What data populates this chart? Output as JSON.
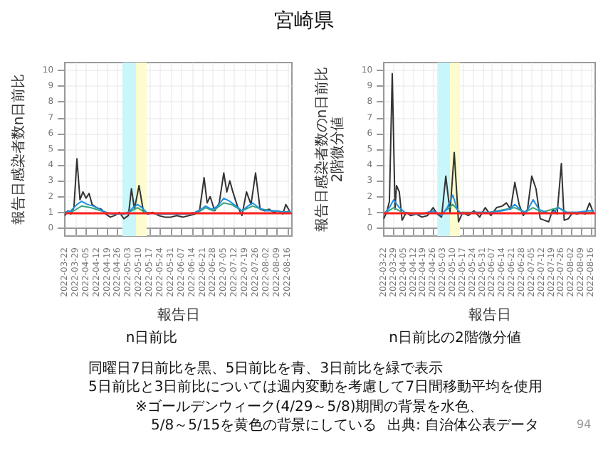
{
  "chart_data": [
    {
      "type": "line",
      "title": "n日前比",
      "xlabel": "報告日",
      "ylabel": "報告日感染者数n日前比",
      "xlim": [
        "2022-03-22",
        "2022-08-19"
      ],
      "xticks": [
        "2022-03-22",
        "2022-03-29",
        "2022-04-05",
        "2022-04-12",
        "2022-04-19",
        "2022-04-26",
        "2022-05-03",
        "2022-05-10",
        "2022-05-17",
        "2022-05-24",
        "2022-05-31",
        "2022-06-07",
        "2022-06-14",
        "2022-06-21",
        "2022-06-28",
        "2022-07-05",
        "2022-07-12",
        "2022-07-19",
        "2022-07-26",
        "2022-08-02",
        "2022-08-09",
        "2022-08-16"
      ],
      "ylim": [
        -0.5,
        10.5
      ],
      "yticks": [
        0,
        1,
        2,
        3,
        4,
        5,
        6,
        7,
        8,
        9,
        10
      ],
      "grid": true,
      "marker": "none",
      "line_style": "solid",
      "annotations": [
        "宮崎県",
        "同曜日7日前比を黒、5日前比を青、3日前比を緑で表示",
        "5日前比と3日前比については週内変動を考慮して7日間移動平均を使用",
        "※ゴールデンウィーク(4/29～5/8)期間の背景を水色、",
        "5/8～5/15を黄色の背景にしている",
        "出典: 自治体公表データ",
        "94"
      ],
      "bands": [
        {
          "axis": "x",
          "from": "2022-04-29",
          "to": "2022-05-08",
          "color": "#c9f6fb"
        },
        {
          "axis": "x",
          "from": "2022-05-08",
          "to": "2022-05-15",
          "color": "#fdfccf"
        }
      ],
      "ref_lines": [
        {
          "axis": "y",
          "value": 1,
          "color": "#ff2020"
        }
      ],
      "series": [
        {
          "color": "#333333",
          "x": [
            "2022-03-22",
            "2022-03-24",
            "2022-03-26",
            "2022-03-28",
            "2022-03-30",
            "2022-04-01",
            "2022-04-03",
            "2022-04-05",
            "2022-04-07",
            "2022-04-09",
            "2022-04-12",
            "2022-04-15",
            "2022-04-18",
            "2022-04-21",
            "2022-04-24",
            "2022-04-27",
            "2022-04-30",
            "2022-05-03",
            "2022-05-05",
            "2022-05-07",
            "2022-05-10",
            "2022-05-13",
            "2022-05-16",
            "2022-05-19",
            "2022-05-23",
            "2022-05-27",
            "2022-05-31",
            "2022-06-04",
            "2022-06-08",
            "2022-06-12",
            "2022-06-16",
            "2022-06-19",
            "2022-06-22",
            "2022-06-24",
            "2022-06-26",
            "2022-06-29",
            "2022-07-02",
            "2022-07-05",
            "2022-07-07",
            "2022-07-09",
            "2022-07-11",
            "2022-07-14",
            "2022-07-17",
            "2022-07-20",
            "2022-07-23",
            "2022-07-26",
            "2022-07-29",
            "2022-08-01",
            "2022-08-04",
            "2022-08-07",
            "2022-08-10",
            "2022-08-13",
            "2022-08-15",
            "2022-08-18"
          ],
          "values": [
            0.8,
            1.1,
            0.9,
            1.3,
            4.4,
            1.8,
            2.3,
            1.9,
            2.2,
            1.5,
            1.3,
            1.2,
            0.9,
            0.7,
            0.8,
            1.0,
            0.6,
            0.8,
            2.5,
            1.2,
            2.7,
            1.0,
            0.9,
            1.0,
            0.8,
            0.7,
            0.7,
            0.8,
            0.7,
            0.8,
            0.9,
            1.1,
            3.2,
            1.6,
            2.0,
            1.1,
            1.6,
            3.5,
            2.3,
            3.0,
            2.3,
            1.4,
            0.8,
            2.3,
            1.5,
            3.5,
            1.2,
            1.1,
            1.2,
            1.0,
            1.1,
            0.9,
            1.5,
            1.0
          ]
        },
        {
          "color": "#3aa57a",
          "x": [
            "2022-03-22",
            "2022-03-28",
            "2022-04-02",
            "2022-04-08",
            "2022-04-15",
            "2022-04-22",
            "2022-04-30",
            "2022-05-05",
            "2022-05-09",
            "2022-05-14",
            "2022-05-25",
            "2022-06-10",
            "2022-06-18",
            "2022-06-23",
            "2022-06-28",
            "2022-07-05",
            "2022-07-10",
            "2022-07-17",
            "2022-07-24",
            "2022-07-30",
            "2022-08-06",
            "2022-08-18"
          ],
          "values": [
            1.0,
            1.1,
            1.4,
            1.3,
            1.1,
            0.9,
            0.9,
            1.1,
            1.3,
            1.0,
            0.9,
            0.9,
            1.0,
            1.3,
            1.1,
            1.6,
            1.5,
            1.1,
            1.4,
            1.2,
            1.1,
            1.0
          ]
        },
        {
          "color": "#1f8fe0",
          "x": [
            "2022-03-22",
            "2022-03-26",
            "2022-03-30",
            "2022-04-02",
            "2022-04-06",
            "2022-04-10",
            "2022-04-14",
            "2022-04-18",
            "2022-04-22",
            "2022-04-26",
            "2022-04-30",
            "2022-05-03",
            "2022-05-06",
            "2022-05-09",
            "2022-05-12",
            "2022-05-15",
            "2022-05-22",
            "2022-06-01",
            "2022-06-10",
            "2022-06-16",
            "2022-06-20",
            "2022-06-23",
            "2022-06-27",
            "2022-07-01",
            "2022-07-05",
            "2022-07-09",
            "2022-07-13",
            "2022-07-17",
            "2022-07-21",
            "2022-07-24",
            "2022-07-28",
            "2022-08-02",
            "2022-08-08",
            "2022-08-14",
            "2022-08-18"
          ],
          "values": [
            1.0,
            1.1,
            1.5,
            1.7,
            1.5,
            1.4,
            1.2,
            1.0,
            0.9,
            0.9,
            0.9,
            1.0,
            1.3,
            1.5,
            1.3,
            1.0,
            0.9,
            0.9,
            0.9,
            1.0,
            1.2,
            1.4,
            1.2,
            1.4,
            1.9,
            1.7,
            1.4,
            1.1,
            1.4,
            1.6,
            1.3,
            1.1,
            1.1,
            1.0,
            1.1
          ]
        }
      ]
    },
    {
      "type": "line",
      "title": "n日前比の2階微分値",
      "xlabel": "報告日",
      "ylabel": "報告日感染者数のn日前比\n2階微分値",
      "xlim": [
        "2022-03-22",
        "2022-08-19"
      ],
      "xticks": [
        "2022-03-22",
        "2022-03-29",
        "2022-04-05",
        "2022-04-12",
        "2022-04-19",
        "2022-04-26",
        "2022-05-03",
        "2022-05-10",
        "2022-05-17",
        "2022-05-24",
        "2022-05-31",
        "2022-06-07",
        "2022-06-14",
        "2022-06-21",
        "2022-06-28",
        "2022-07-05",
        "2022-07-12",
        "2022-07-19",
        "2022-07-26",
        "2022-08-02",
        "2022-08-09",
        "2022-08-16"
      ],
      "ylim": [
        -0.5,
        10.5
      ],
      "yticks": [
        0,
        1,
        2,
        3,
        4,
        5,
        6,
        7,
        8,
        9,
        10
      ],
      "grid": true,
      "marker": "none",
      "line_style": "solid",
      "bands": [
        {
          "axis": "x",
          "from": "2022-04-29",
          "to": "2022-05-08",
          "color": "#c9f6fb"
        },
        {
          "axis": "x",
          "from": "2022-05-08",
          "to": "2022-05-15",
          "color": "#fdfccf"
        }
      ],
      "ref_lines": [
        {
          "axis": "y",
          "value": 1,
          "color": "#ff2020"
        }
      ],
      "series": [
        {
          "color": "#333333",
          "x": [
            "2022-03-22",
            "2022-03-24",
            "2022-03-26",
            "2022-03-28",
            "2022-03-30",
            "2022-03-31",
            "2022-04-02",
            "2022-04-04",
            "2022-04-07",
            "2022-04-10",
            "2022-04-14",
            "2022-04-18",
            "2022-04-22",
            "2022-04-26",
            "2022-04-29",
            "2022-05-02",
            "2022-05-05",
            "2022-05-08",
            "2022-05-11",
            "2022-05-14",
            "2022-05-17",
            "2022-05-21",
            "2022-05-25",
            "2022-05-29",
            "2022-06-02",
            "2022-06-06",
            "2022-06-10",
            "2022-06-14",
            "2022-06-17",
            "2022-06-20",
            "2022-06-23",
            "2022-06-26",
            "2022-06-29",
            "2022-07-02",
            "2022-07-05",
            "2022-07-08",
            "2022-07-11",
            "2022-07-14",
            "2022-07-17",
            "2022-07-20",
            "2022-07-23",
            "2022-07-26",
            "2022-07-28",
            "2022-07-31",
            "2022-08-03",
            "2022-08-06",
            "2022-08-09",
            "2022-08-12",
            "2022-08-15",
            "2022-08-18"
          ],
          "values": [
            0.6,
            1.0,
            1.7,
            9.8,
            1.2,
            2.7,
            2.3,
            0.5,
            1.0,
            0.8,
            0.9,
            0.7,
            0.8,
            1.3,
            0.9,
            0.7,
            3.3,
            1.0,
            4.8,
            0.4,
            1.0,
            0.8,
            1.1,
            0.7,
            1.3,
            0.8,
            1.3,
            1.4,
            1.6,
            1.2,
            2.9,
            1.5,
            0.8,
            1.2,
            3.3,
            2.5,
            0.6,
            0.5,
            0.4,
            1.2,
            0.9,
            4.1,
            0.5,
            0.6,
            1.0,
            0.9,
            1.0,
            0.9,
            1.6,
            0.9
          ]
        },
        {
          "color": "#3aa57a",
          "x": [
            "2022-03-22",
            "2022-03-29",
            "2022-04-04",
            "2022-04-18",
            "2022-04-26",
            "2022-05-02",
            "2022-05-10",
            "2022-05-15",
            "2022-06-05",
            "2022-06-23",
            "2022-06-30",
            "2022-07-06",
            "2022-07-12",
            "2022-07-24",
            "2022-07-30",
            "2022-08-18"
          ],
          "values": [
            0.9,
            1.3,
            1.0,
            0.9,
            1.0,
            0.9,
            1.5,
            1.0,
            1.0,
            1.3,
            1.0,
            1.3,
            1.0,
            1.3,
            1.0,
            1.0
          ]
        },
        {
          "color": "#1f8fe0",
          "x": [
            "2022-03-22",
            "2022-03-26",
            "2022-03-29",
            "2022-04-02",
            "2022-04-06",
            "2022-04-12",
            "2022-04-18",
            "2022-04-26",
            "2022-05-02",
            "2022-05-06",
            "2022-05-10",
            "2022-05-13",
            "2022-05-16",
            "2022-05-25",
            "2022-06-05",
            "2022-06-14",
            "2022-06-19",
            "2022-06-23",
            "2022-06-28",
            "2022-07-01",
            "2022-07-06",
            "2022-07-10",
            "2022-07-15",
            "2022-07-19",
            "2022-07-24",
            "2022-07-29",
            "2022-08-06",
            "2022-08-14",
            "2022-08-18"
          ],
          "values": [
            0.9,
            1.3,
            1.8,
            1.3,
            1.0,
            0.9,
            0.9,
            1.1,
            0.8,
            1.3,
            2.1,
            1.2,
            0.9,
            1.0,
            1.0,
            1.1,
            1.2,
            1.5,
            1.1,
            1.0,
            1.8,
            1.2,
            1.0,
            0.9,
            1.3,
            1.0,
            1.0,
            1.1,
            1.1
          ]
        }
      ]
    }
  ]
}
